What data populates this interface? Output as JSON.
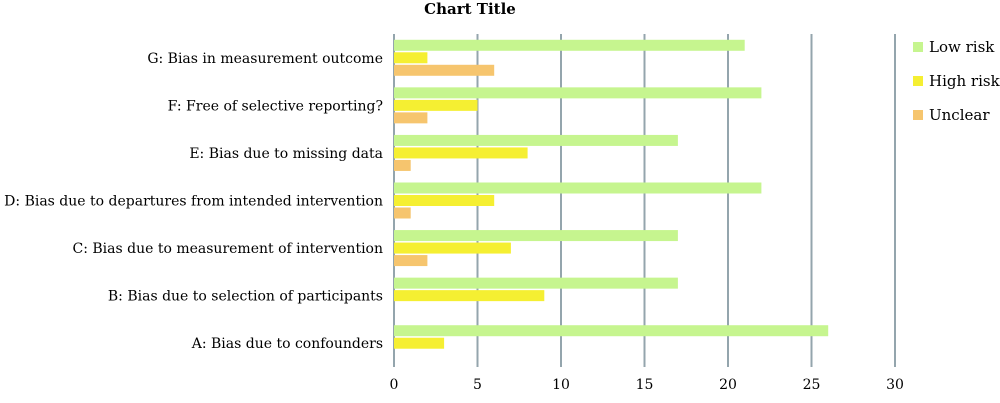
{
  "chart_data": {
    "type": "bar",
    "orientation": "horizontal",
    "title": "Chart Title",
    "categories": [
      "A: Bias due to confounders",
      "B: Bias due to selection of participants",
      "C: Bias due to measurement of intervention",
      "D: Bias due to departures from intended intervention",
      "E: Bias due to missing data",
      "F: Free of selective reporting?",
      "G: Bias in measurement outcome"
    ],
    "series": [
      {
        "name": "Low risk",
        "color": "#c6f58f",
        "values": [
          26,
          17,
          17,
          22,
          17,
          22,
          21
        ]
      },
      {
        "name": "High risk",
        "color": "#f5ef32",
        "values": [
          3,
          9,
          7,
          6,
          8,
          5,
          2
        ]
      },
      {
        "name": "Unclear",
        "color": "#f6c56e",
        "values": [
          0,
          0,
          2,
          1,
          1,
          2,
          6
        ]
      }
    ],
    "xlim": [
      0,
      30
    ],
    "xticks": [
      0,
      5,
      10,
      15,
      20,
      25,
      30
    ],
    "gridlines": "vertical",
    "grid_color": "#94a5ad",
    "legend_position": "right"
  }
}
